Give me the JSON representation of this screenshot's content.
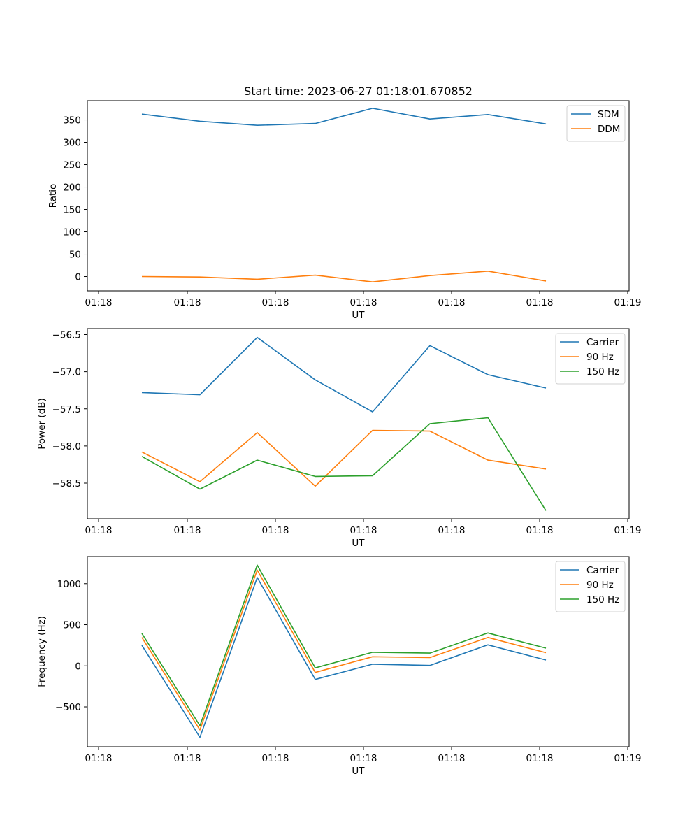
{
  "title": "Start time: 2023-06-27 01:18:01.670852",
  "chart_data": [
    {
      "type": "line",
      "ylabel": "Ratio",
      "xlabel": "UT",
      "x_tick_labels": [
        "01:18",
        "01:18",
        "01:18",
        "01:18",
        "01:18",
        "01:18",
        "01:19"
      ],
      "y_ticks": [
        0,
        50,
        100,
        150,
        200,
        250,
        300,
        350
      ],
      "ylim": [
        -32,
        393
      ],
      "legend_position": "upper-right",
      "series": [
        {
          "name": "SDM",
          "color": "#1f77b4",
          "values": [
            363,
            347,
            338,
            342,
            376,
            352,
            362,
            341
          ]
        },
        {
          "name": "DDM",
          "color": "#ff7f0e",
          "values": [
            0,
            -1,
            -6,
            3,
            -12,
            2,
            12,
            -10
          ]
        }
      ]
    },
    {
      "type": "line",
      "ylabel": "Power (dB)",
      "xlabel": "UT",
      "x_tick_labels": [
        "01:18",
        "01:18",
        "01:18",
        "01:18",
        "01:18",
        "01:18",
        "01:19"
      ],
      "y_ticks": [
        -58.5,
        -58.0,
        -57.5,
        -57.0,
        -56.5
      ],
      "y_tick_labels": [
        "−58.5",
        "−58.0",
        "−57.5",
        "−57.0",
        "−56.5"
      ],
      "ylim": [
        -58.98,
        -56.42
      ],
      "legend_position": "upper-right",
      "series": [
        {
          "name": "Carrier",
          "color": "#1f77b4",
          "values": [
            -57.28,
            -57.31,
            -56.54,
            -57.11,
            -57.54,
            -56.65,
            -57.04,
            -57.22
          ]
        },
        {
          "name": "90 Hz",
          "color": "#ff7f0e",
          "values": [
            -58.08,
            -58.48,
            -57.82,
            -58.54,
            -57.79,
            -57.8,
            -58.19,
            -58.31
          ]
        },
        {
          "name": "150 Hz",
          "color": "#2ca02c",
          "values": [
            -58.14,
            -58.58,
            -58.19,
            -58.41,
            -58.4,
            -57.7,
            -57.62,
            -58.87
          ]
        }
      ]
    },
    {
      "type": "line",
      "ylabel": "Frequency (Hz)",
      "xlabel": "UT",
      "x_tick_labels": [
        "01:18",
        "01:18",
        "01:18",
        "01:18",
        "01:18",
        "01:18",
        "01:19"
      ],
      "y_ticks": [
        -500,
        0,
        500,
        1000
      ],
      "y_tick_labels": [
        "−500",
        "0",
        "500",
        "1000"
      ],
      "ylim": [
        -985,
        1330
      ],
      "legend_position": "upper-right",
      "series": [
        {
          "name": "Carrier",
          "color": "#1f77b4",
          "values": [
            250,
            -870,
            1075,
            -165,
            20,
            5,
            255,
            70
          ]
        },
        {
          "name": "90 Hz",
          "color": "#ff7f0e",
          "values": [
            345,
            -780,
            1165,
            -80,
            110,
            100,
            345,
            160
          ]
        },
        {
          "name": "150 Hz",
          "color": "#2ca02c",
          "values": [
            395,
            -730,
            1225,
            -25,
            165,
            155,
            400,
            215
          ]
        }
      ]
    }
  ]
}
